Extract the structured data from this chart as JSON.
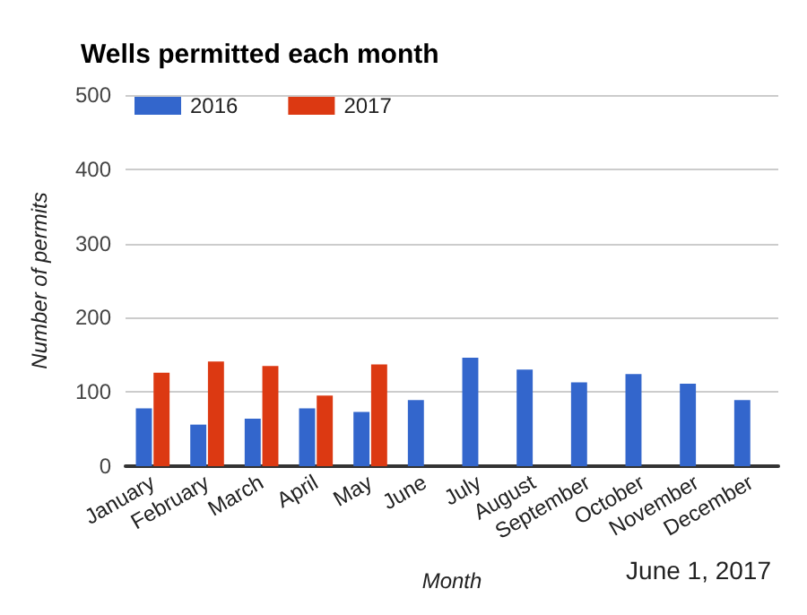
{
  "chart_data": {
    "type": "bar",
    "title": "Wells permitted each month",
    "xlabel": "Month",
    "ylabel": "Number of permits",
    "categories": [
      "January",
      "February",
      "March",
      "April",
      "May",
      "June",
      "July",
      "August",
      "September",
      "October",
      "November",
      "December"
    ],
    "series": [
      {
        "name": "2016",
        "color": "#3366cc",
        "values": [
          78,
          56,
          64,
          78,
          73,
          89,
          146,
          130,
          113,
          124,
          111,
          89
        ]
      },
      {
        "name": "2017",
        "color": "#dc3912",
        "values": [
          126,
          141,
          135,
          95,
          137,
          null,
          null,
          null,
          null,
          null,
          null,
          null
        ]
      }
    ],
    "ylim": [
      0,
      500
    ],
    "yticks": [
      0,
      100,
      200,
      300,
      400,
      500
    ],
    "grid": "y",
    "legend": "top left",
    "annotations": [
      "June 1, 2017"
    ]
  }
}
